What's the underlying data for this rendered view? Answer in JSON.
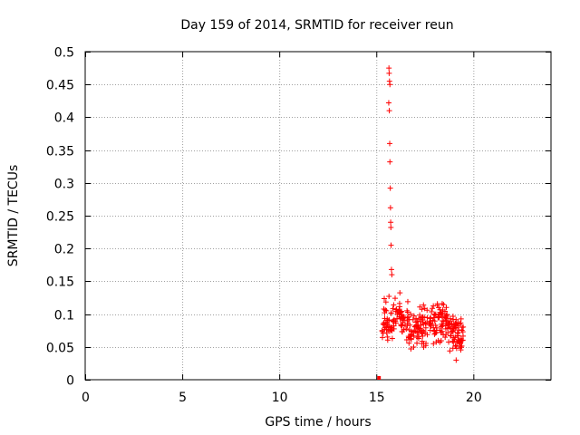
{
  "chart_data": {
    "type": "scatter",
    "title": "Day 159 of 2014, SRMTID for receiver reun",
    "xlabel": "GPS time / hours",
    "ylabel": "SRMTID / TECUs",
    "xlim": [
      0,
      24
    ],
    "ylim": [
      0,
      0.5
    ],
    "x_ticks": [
      0,
      5,
      10,
      15,
      20
    ],
    "y_ticks": [
      0,
      0.05,
      0.1,
      0.15,
      0.2,
      0.25,
      0.3,
      0.35,
      0.4,
      0.45,
      0.5
    ],
    "x_tick_labels": [
      "0",
      "5",
      "10",
      "15",
      "20"
    ],
    "y_tick_labels": [
      "0",
      "0.05",
      "0.1",
      "0.15",
      "0.2",
      "0.25",
      "0.3",
      "0.35",
      "0.4",
      "0.45",
      "0.5"
    ],
    "grid": true,
    "marker": "+",
    "series_color": "#ff0000",
    "zero_points": [
      [
        15.12,
        0.0
      ],
      [
        15.16,
        0.0
      ]
    ],
    "spike_points": [
      [
        15.65,
        0.475
      ],
      [
        15.66,
        0.467
      ],
      [
        15.68,
        0.455
      ],
      [
        15.7,
        0.45
      ],
      [
        15.64,
        0.422
      ],
      [
        15.67,
        0.41
      ],
      [
        15.69,
        0.36
      ],
      [
        15.7,
        0.332
      ],
      [
        15.72,
        0.292
      ],
      [
        15.73,
        0.262
      ],
      [
        15.74,
        0.24
      ],
      [
        15.75,
        0.232
      ],
      [
        15.76,
        0.205
      ],
      [
        15.78,
        0.168
      ],
      [
        15.8,
        0.16
      ]
    ],
    "cluster": {
      "x_start": 15.3,
      "x_end": 19.5,
      "count": 320,
      "seed": 1402,
      "y_min": 0.022,
      "y_max": 0.17,
      "profile": [
        [
          15.3,
          0.085
        ],
        [
          15.6,
          0.09
        ],
        [
          16.0,
          0.1
        ],
        [
          16.4,
          0.095
        ],
        [
          16.8,
          0.08
        ],
        [
          17.2,
          0.078
        ],
        [
          17.6,
          0.085
        ],
        [
          18.0,
          0.092
        ],
        [
          18.4,
          0.09
        ],
        [
          18.8,
          0.08
        ],
        [
          19.1,
          0.065
        ],
        [
          19.5,
          0.06
        ]
      ]
    }
  }
}
